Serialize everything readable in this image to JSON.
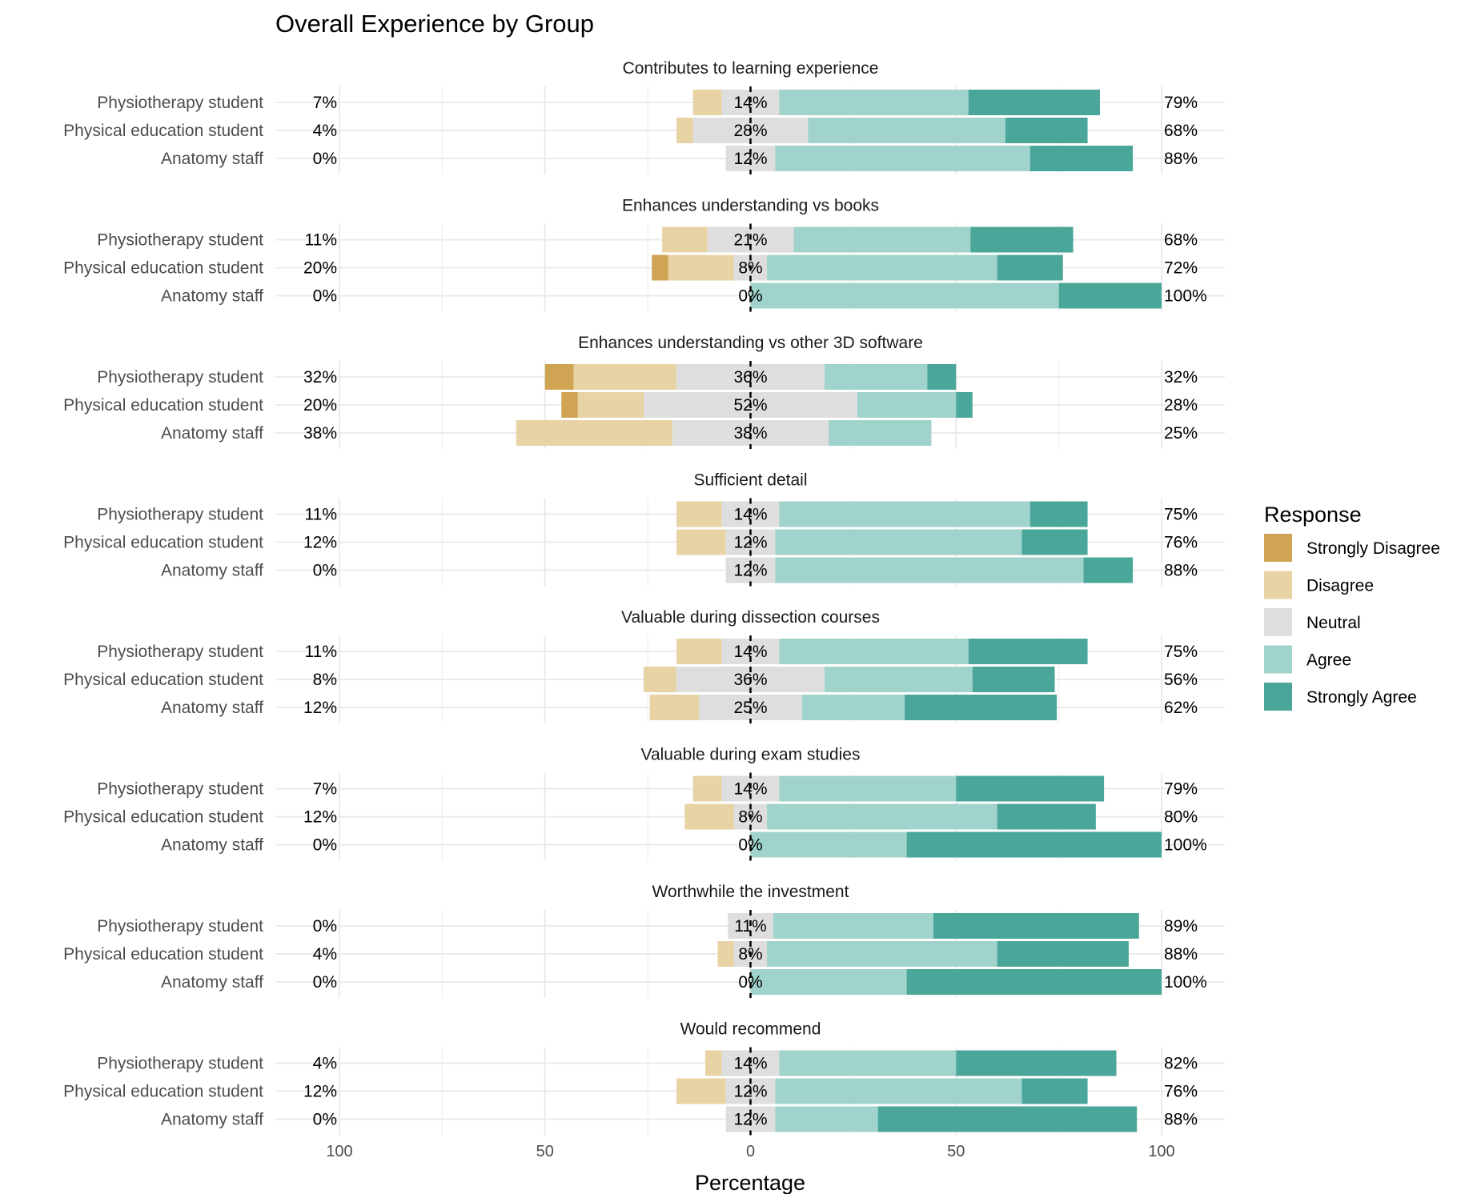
{
  "chart_data": {
    "type": "bar",
    "subtype": "diverging-stacked-likert",
    "title": "Overall Experience by Group",
    "xlabel": "Percentage",
    "xlim": [
      -100,
      100
    ],
    "x_ticks": [
      -100,
      -50,
      0,
      50,
      100
    ],
    "x_tick_labels": [
      "100",
      "50",
      "0",
      "50",
      "100"
    ],
    "grid": true,
    "legend": {
      "title": "Response",
      "placement": "right",
      "items": [
        "Strongly Disagree",
        "Disagree",
        "Neutral",
        "Agree",
        "Strongly Agree"
      ]
    },
    "colors": {
      "Strongly Disagree": "#CFA553",
      "Disagree": "#E8D3A4",
      "Neutral": "#DEDEDE",
      "Agree": "#A0D3CB",
      "Strongly Agree": "#4BA69A"
    },
    "groups": [
      "Physiotherapy student",
      "Physical education student",
      "Anatomy staff"
    ],
    "facets": [
      {
        "title": "Contributes to learning experience",
        "rows": [
          {
            "group": "Physiotherapy student",
            "values": [
              0,
              7,
              14,
              46,
              32
            ],
            "neg_label": "7%",
            "neutral_label": "14%",
            "pos_label": "79%"
          },
          {
            "group": "Physical education student",
            "values": [
              0,
              4,
              28,
              48,
              20
            ],
            "neg_label": "4%",
            "neutral_label": "28%",
            "pos_label": "68%"
          },
          {
            "group": "Anatomy staff",
            "values": [
              0,
              0,
              12,
              62,
              25
            ],
            "neg_label": "0%",
            "neutral_label": "12%",
            "pos_label": "88%"
          }
        ]
      },
      {
        "title": "Enhances understanding vs books",
        "rows": [
          {
            "group": "Physiotherapy student",
            "values": [
              0,
              11,
              21,
              43,
              25
            ],
            "neg_label": "11%",
            "neutral_label": "21%",
            "pos_label": "68%"
          },
          {
            "group": "Physical education student",
            "values": [
              4,
              16,
              8,
              56,
              16
            ],
            "neg_label": "20%",
            "neutral_label": "8%",
            "pos_label": "72%"
          },
          {
            "group": "Anatomy staff",
            "values": [
              0,
              0,
              0,
              75,
              25
            ],
            "neg_label": "0%",
            "neutral_label": "0%",
            "pos_label": "100%"
          }
        ]
      },
      {
        "title": "Enhances understanding vs other 3D software",
        "rows": [
          {
            "group": "Physiotherapy student",
            "values": [
              7,
              25,
              36,
              25,
              7
            ],
            "neg_label": "32%",
            "neutral_label": "36%",
            "pos_label": "32%"
          },
          {
            "group": "Physical education student",
            "values": [
              4,
              16,
              52,
              24,
              4
            ],
            "neg_label": "20%",
            "neutral_label": "52%",
            "pos_label": "28%"
          },
          {
            "group": "Anatomy staff",
            "values": [
              0,
              38,
              38,
              25,
              0
            ],
            "neg_label": "38%",
            "neutral_label": "38%",
            "pos_label": "25%"
          }
        ]
      },
      {
        "title": "Sufficient detail",
        "rows": [
          {
            "group": "Physiotherapy student",
            "values": [
              0,
              11,
              14,
              61,
              14
            ],
            "neg_label": "11%",
            "neutral_label": "14%",
            "pos_label": "75%"
          },
          {
            "group": "Physical education student",
            "values": [
              0,
              12,
              12,
              60,
              16
            ],
            "neg_label": "12%",
            "neutral_label": "12%",
            "pos_label": "76%"
          },
          {
            "group": "Anatomy staff",
            "values": [
              0,
              0,
              12,
              75,
              12
            ],
            "neg_label": "0%",
            "neutral_label": "12%",
            "pos_label": "88%"
          }
        ]
      },
      {
        "title": "Valuable during dissection courses",
        "rows": [
          {
            "group": "Physiotherapy student",
            "values": [
              0,
              11,
              14,
              46,
              29
            ],
            "neg_label": "11%",
            "neutral_label": "14%",
            "pos_label": "75%"
          },
          {
            "group": "Physical education student",
            "values": [
              0,
              8,
              36,
              36,
              20
            ],
            "neg_label": "8%",
            "neutral_label": "36%",
            "pos_label": "56%"
          },
          {
            "group": "Anatomy staff",
            "values": [
              0,
              12,
              25,
              25,
              37
            ],
            "neg_label": "12%",
            "neutral_label": "25%",
            "pos_label": "62%"
          }
        ]
      },
      {
        "title": "Valuable during exam studies",
        "rows": [
          {
            "group": "Physiotherapy student",
            "values": [
              0,
              7,
              14,
              43,
              36
            ],
            "neg_label": "7%",
            "neutral_label": "14%",
            "pos_label": "79%"
          },
          {
            "group": "Physical education student",
            "values": [
              0,
              12,
              8,
              56,
              24
            ],
            "neg_label": "12%",
            "neutral_label": "8%",
            "pos_label": "80%"
          },
          {
            "group": "Anatomy staff",
            "values": [
              0,
              0,
              0,
              38,
              62
            ],
            "neg_label": "0%",
            "neutral_label": "0%",
            "pos_label": "100%"
          }
        ]
      },
      {
        "title": "Worthwhile the investment",
        "rows": [
          {
            "group": "Physiotherapy student",
            "values": [
              0,
              0,
              11,
              39,
              50
            ],
            "neg_label": "0%",
            "neutral_label": "11%",
            "pos_label": "89%"
          },
          {
            "group": "Physical education student",
            "values": [
              0,
              4,
              8,
              56,
              32
            ],
            "neg_label": "4%",
            "neutral_label": "8%",
            "pos_label": "88%"
          },
          {
            "group": "Anatomy staff",
            "values": [
              0,
              0,
              0,
              38,
              62
            ],
            "neg_label": "0%",
            "neutral_label": "0%",
            "pos_label": "100%"
          }
        ]
      },
      {
        "title": "Would recommend",
        "rows": [
          {
            "group": "Physiotherapy student",
            "values": [
              0,
              4,
              14,
              43,
              39
            ],
            "neg_label": "4%",
            "neutral_label": "14%",
            "pos_label": "82%"
          },
          {
            "group": "Physical education student",
            "values": [
              0,
              12,
              12,
              60,
              16
            ],
            "neg_label": "12%",
            "neutral_label": "12%",
            "pos_label": "76%"
          },
          {
            "group": "Anatomy staff",
            "values": [
              0,
              0,
              12,
              25,
              63
            ],
            "neg_label": "0%",
            "neutral_label": "12%",
            "pos_label": "88%"
          }
        ]
      }
    ]
  }
}
